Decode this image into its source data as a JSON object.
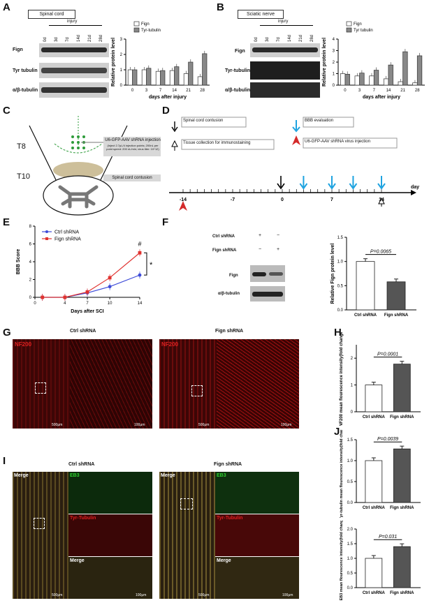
{
  "panels": {
    "A": "A",
    "B": "B",
    "C": "C",
    "D": "D",
    "E": "E",
    "F": "F",
    "G": "G",
    "H": "H",
    "I": "I",
    "J": "J"
  },
  "panelA": {
    "tissue": "Spinal cord",
    "injury_label": "injury",
    "timepoints": [
      "0d",
      "3d",
      "7d",
      "14d",
      "21d",
      "28d"
    ],
    "rows": [
      "Fign",
      "Tyr tubulin",
      "α/β-tubulin"
    ]
  },
  "panelB": {
    "tissue": "Sciatic nerve",
    "injury_label": "injury",
    "timepoints": [
      "0d",
      "3d",
      "7d",
      "14d",
      "21d",
      "28d"
    ],
    "rows": [
      "Fign",
      "Tyr-tubulin",
      "α/β-tubulin"
    ]
  },
  "panelC": {
    "level_T8": "T8",
    "level_T10": "T10",
    "injection_title": "U6-GFP-AAV shRNA injection",
    "injection_detail": "(Inject 2.7μL/4 injection points; 200nL per point speed: 200 nL/min; virus titer: 10^12)",
    "contusion_label": "Spinal cord contusion"
  },
  "panelD": {
    "legend_contusion": "Spinal cord contusion",
    "legend_collection": "Tissue collection for immunostaining",
    "legend_bbb": "BBB evaluation",
    "legend_virus": "U6-GFP-AAV shRNA virus injection",
    "ticks": [
      "-14",
      "-7",
      "0",
      "7",
      "14"
    ],
    "axis_unit": "day"
  },
  "panelF": {
    "ctrl_row": "Ctrl shRNA",
    "fign_row": "Fign shRNA",
    "signs_ctrl": [
      "+",
      "−"
    ],
    "signs_fign": [
      "−",
      "+"
    ],
    "blot_rows": [
      "Fign",
      "α/β-tubulin"
    ]
  },
  "panelG": {
    "ctrl_title": "Ctrl shRNA",
    "fign_title": "Fign shRNA",
    "marker": "NF200",
    "scale_large": "500μm",
    "scale_small": "100μm"
  },
  "panelI": {
    "ctrl_title": "Ctrl shRNA",
    "fign_title": "Fign shRNA",
    "merge": "Merge",
    "eb3": "EB3",
    "tyr": "Tyr-Tubulin",
    "scale_large": "500μm",
    "scale_small": "100μm"
  },
  "colors": {
    "ctrl": "#3d4bd8",
    "fign": "#e0322f",
    "bar_grey": "#888888",
    "micro_red": "#c81818"
  },
  "chart_data": [
    {
      "id": "A-chart",
      "type": "bar",
      "xlabel": "days after injury",
      "ylabel": "Relative protein level",
      "categories": [
        "0",
        "3",
        "7",
        "14",
        "21",
        "28"
      ],
      "ylim": [
        0,
        3
      ],
      "yticks": [
        "0",
        "1",
        "2",
        "3"
      ],
      "series": [
        {
          "name": "Fign",
          "values": [
            1.0,
            1.0,
            0.9,
            0.95,
            0.75,
            0.55
          ]
        },
        {
          "name": "Tyr-tubulin",
          "values": [
            1.0,
            1.1,
            0.95,
            1.2,
            1.5,
            2.05
          ]
        }
      ]
    },
    {
      "id": "B-chart",
      "type": "bar",
      "xlabel": "days after injury",
      "ylabel": "Relative protein level",
      "categories": [
        "0",
        "3",
        "7",
        "14",
        "21",
        "28"
      ],
      "ylim": [
        0,
        4
      ],
      "yticks": [
        "0",
        "1",
        "2",
        "3",
        "4"
      ],
      "series": [
        {
          "name": "Fign",
          "values": [
            1.0,
            0.8,
            0.8,
            0.55,
            0.3,
            0.2
          ]
        },
        {
          "name": "Tyr tubulin",
          "values": [
            0.95,
            1.05,
            1.3,
            1.75,
            2.9,
            2.55
          ]
        }
      ]
    },
    {
      "id": "E-chart",
      "type": "line",
      "xlabel": "Days after SCI",
      "ylabel": "BBB Score",
      "x": [
        1,
        4,
        7,
        10,
        14
      ],
      "ylim": [
        0,
        8
      ],
      "yticks": [
        "0",
        "2",
        "4",
        "6",
        "8"
      ],
      "xticks": [
        "0",
        "4",
        "7",
        "10",
        "14"
      ],
      "series": [
        {
          "name": "Ctrl shRNA",
          "values": [
            0,
            0,
            0.5,
            1.2,
            2.5
          ]
        },
        {
          "name": "Fign shRNA",
          "values": [
            0,
            0,
            0.6,
            2.2,
            5.0
          ]
        }
      ],
      "annotations": [
        "#",
        "*"
      ]
    },
    {
      "id": "F-chart",
      "type": "bar",
      "ylabel": "Relative Fign protein level",
      "categories": [
        "Ctrl shRNA",
        "Fign shRNA"
      ],
      "values": [
        1.0,
        0.58
      ],
      "ylim": [
        0,
        1.5
      ],
      "yticks": [
        "0.0",
        "0.5",
        "1.0",
        "1.5"
      ],
      "pvalue": "P=0.0065"
    },
    {
      "id": "H-chart",
      "type": "bar",
      "ylabel": "NF200 mean flourescence intensity(fold change)",
      "categories": [
        "Ctrl shRNA",
        "Fign shRNA"
      ],
      "values": [
        1.0,
        1.78
      ],
      "ylim": [
        0,
        2.5
      ],
      "yticks": [
        "0",
        "1",
        "2"
      ],
      "pvalue": "P=0.0001"
    },
    {
      "id": "J1-chart",
      "type": "bar",
      "ylabel": "Tyr-tubulin mean flourescence intensity(fold change)",
      "categories": [
        "Ctrl shRNA",
        "Fign shRNA"
      ],
      "values": [
        1.0,
        1.28
      ],
      "ylim": [
        0,
        1.5
      ],
      "yticks": [
        "0.0",
        "0.5",
        "1.0",
        "1.5"
      ],
      "pvalue": "P=0.0039"
    },
    {
      "id": "J2-chart",
      "type": "bar",
      "ylabel": "EB3 mean flourescence intensity(fold change)",
      "categories": [
        "Ctrl shRNA",
        "Fign shRNA"
      ],
      "values": [
        1.0,
        1.4
      ],
      "ylim": [
        0,
        2.0
      ],
      "yticks": [
        "0.0",
        "0.5",
        "1.0",
        "1.5",
        "2.0"
      ],
      "pvalue": "P=0.031"
    }
  ]
}
